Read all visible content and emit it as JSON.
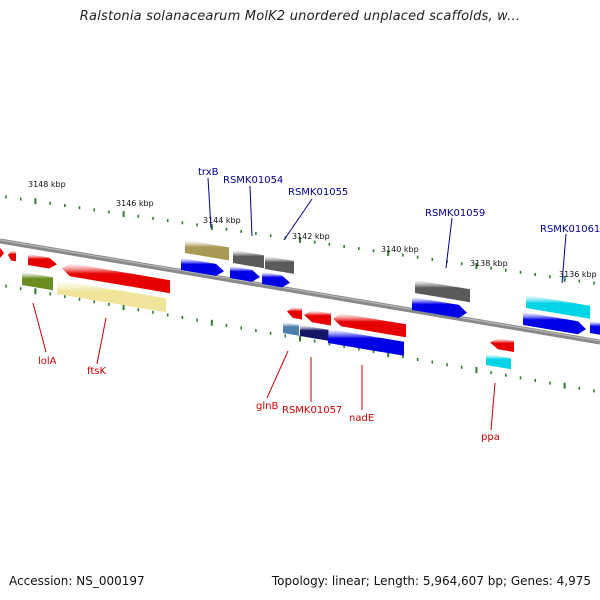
{
  "header": {
    "title": "Ralstonia solanacearum MolK2 unordered unplaced scaffolds, w..."
  },
  "footer": {
    "accession": "Accession: NS_000197",
    "summary": "Topology: linear; Length: 5,964,607 bp; Genes: 4,975"
  },
  "colors": {
    "backbone": "#8a8a8a",
    "tick": "#2e7d32",
    "label_top": "#00008b",
    "label_bottom": "#cc0000",
    "red": "#e60000",
    "blue": "#0000e6",
    "gray": "#5a5a5a",
    "khaki": "#a89a55",
    "olive": "#6b8e23",
    "pale_yellow": "#f0e49a",
    "cyan": "#00d4e6",
    "steel": "#4f7fae",
    "navy": "#141466"
  },
  "scale": {
    "ticks": [
      {
        "label": "3148 kbp"
      },
      {
        "label": "3146 kbp"
      },
      {
        "label": "3144 kbp"
      },
      {
        "label": "3142 kbp"
      },
      {
        "label": "3140 kbp"
      },
      {
        "label": "3138 kbp"
      },
      {
        "label": "3136 kbp"
      }
    ]
  },
  "gene_labels": {
    "top": [
      "trxB",
      "RSMK01054",
      "RSMK01055",
      "RSMK01059",
      "RSMK01061"
    ],
    "bottom": [
      "lolA",
      "ftsK",
      "glnB",
      "RSMK01057",
      "nadE",
      "ppa"
    ]
  }
}
